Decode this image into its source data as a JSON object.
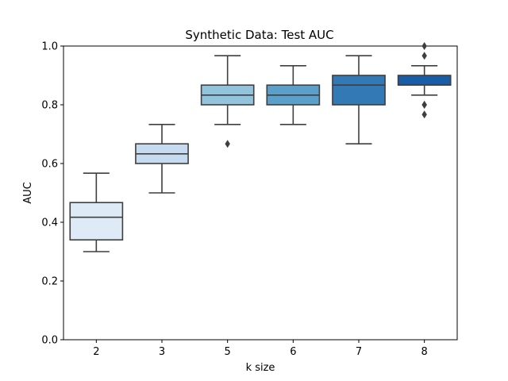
{
  "chart_data": {
    "type": "boxplot",
    "title": "Synthetic Data: Test AUC",
    "xlabel": "k size",
    "ylabel": "AUC",
    "ylim": [
      0.0,
      1.0
    ],
    "yticks": [
      "0.0",
      "0.2",
      "0.4",
      "0.6",
      "0.8",
      "1.0"
    ],
    "grid": false,
    "categories": [
      "2",
      "3",
      "5",
      "6",
      "7",
      "8"
    ],
    "boxes": [
      {
        "category": "2",
        "whisker_low": 0.3,
        "q1": 0.34,
        "median": 0.417,
        "q3": 0.467,
        "whisker_high": 0.567,
        "outliers": [],
        "color": "#deebf7"
      },
      {
        "category": "3",
        "whisker_low": 0.5,
        "q1": 0.6,
        "median": 0.633,
        "q3": 0.667,
        "whisker_high": 0.733,
        "outliers": [],
        "color": "#c6dbef"
      },
      {
        "category": "5",
        "whisker_low": 0.733,
        "q1": 0.8,
        "median": 0.833,
        "q3": 0.867,
        "whisker_high": 0.967,
        "outliers": [
          0.667
        ],
        "color": "#92c4de"
      },
      {
        "category": "6",
        "whisker_low": 0.733,
        "q1": 0.8,
        "median": 0.833,
        "q3": 0.867,
        "whisker_high": 0.933,
        "outliers": [],
        "color": "#5b9fcb"
      },
      {
        "category": "7",
        "whisker_low": 0.667,
        "q1": 0.8,
        "median": 0.867,
        "q3": 0.9,
        "whisker_high": 0.967,
        "outliers": [],
        "color": "#3379b5"
      },
      {
        "category": "8",
        "whisker_low": 0.833,
        "q1": 0.867,
        "median": 0.867,
        "q3": 0.9,
        "whisker_high": 0.933,
        "outliers": [
          1.0,
          0.967,
          0.8,
          0.8,
          0.767
        ],
        "color": "#195da6"
      }
    ]
  }
}
